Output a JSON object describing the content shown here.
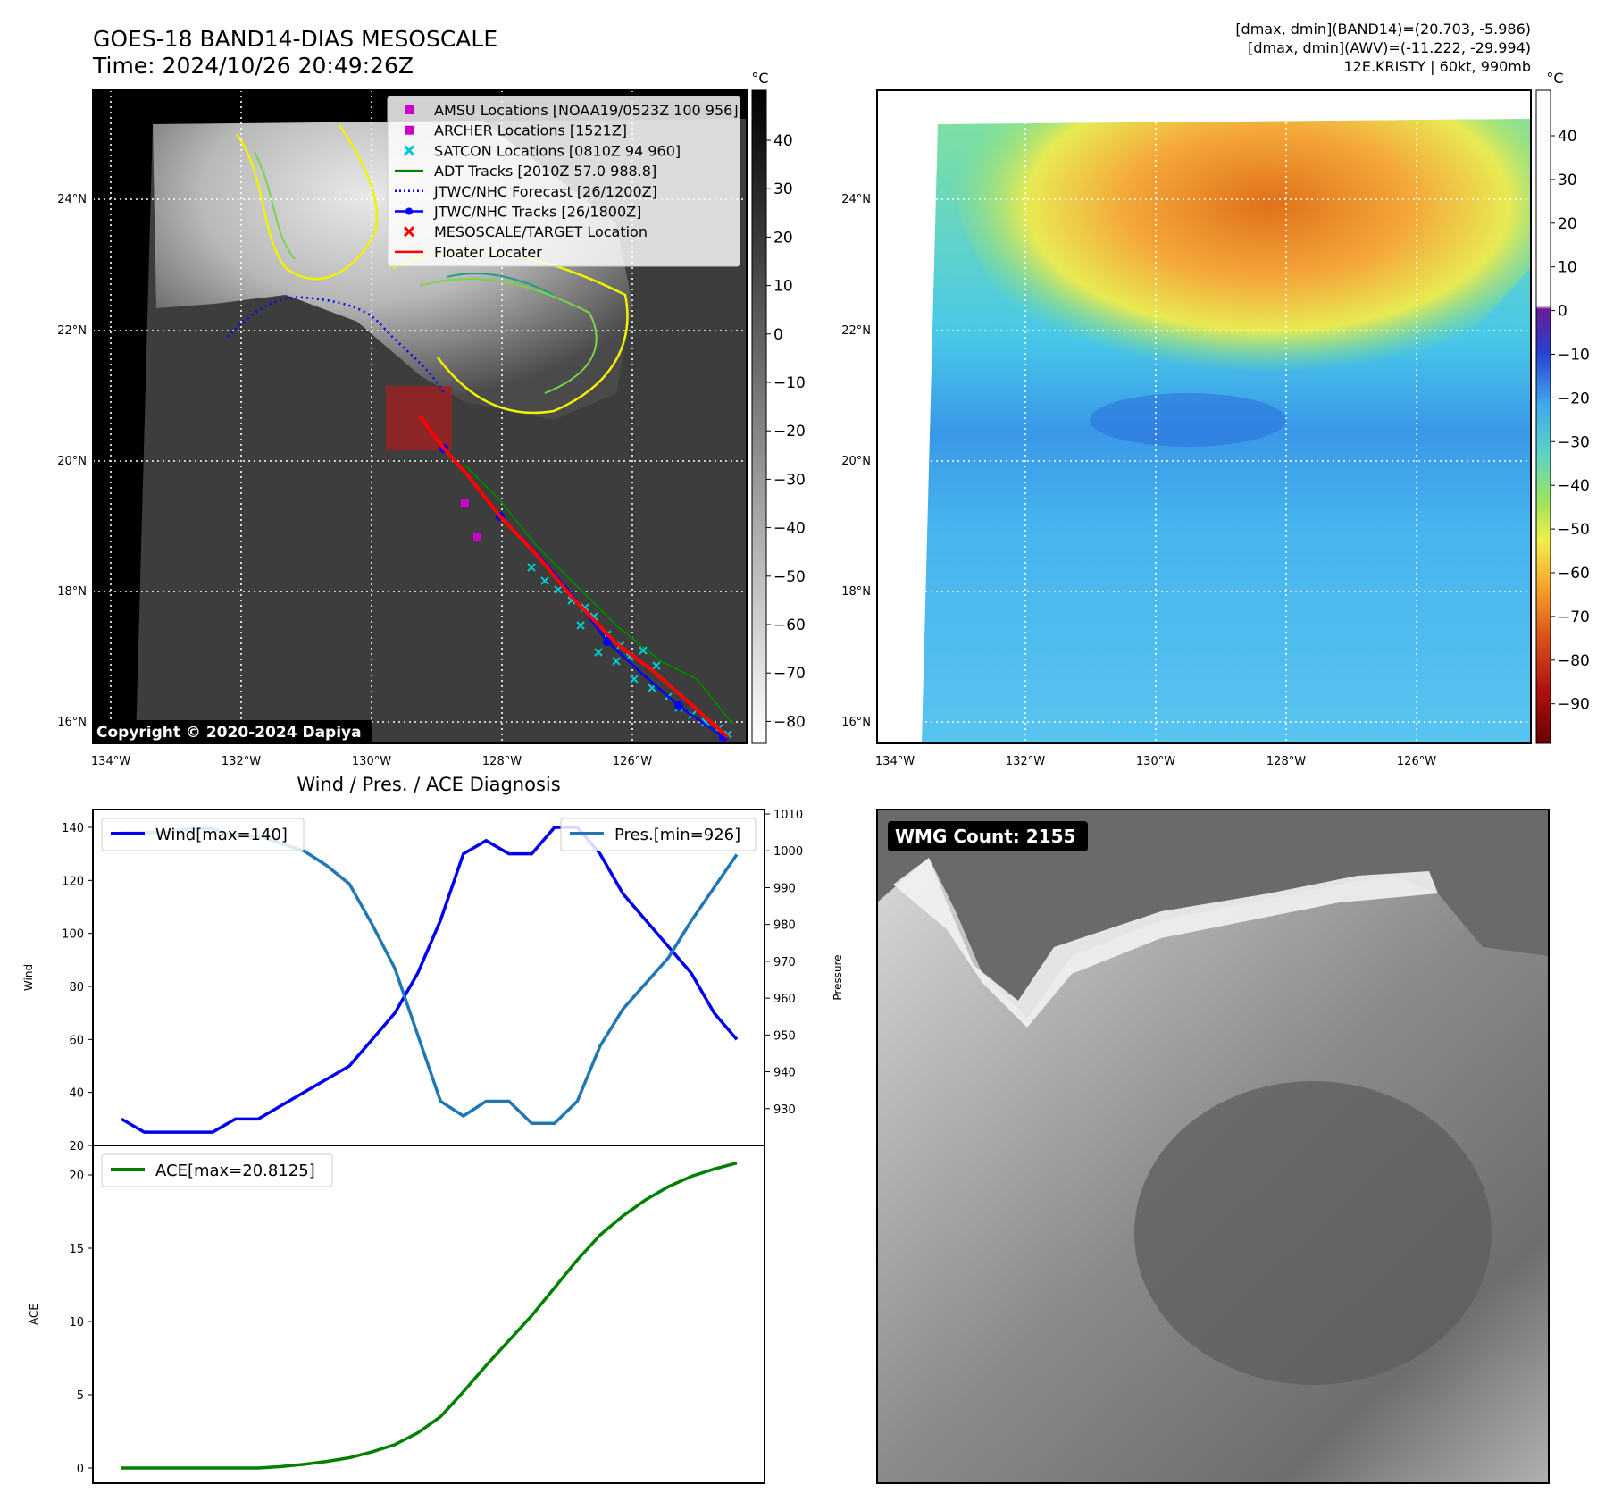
{
  "header": {
    "title": "GOES-18 BAND14-DIAS MESOSCALE",
    "time": "Time: 2024/10/26 20:49:26Z",
    "info_lines": [
      "[dmax, dmin](BAND14)=(20.703, -5.986)",
      "[dmax, dmin](AWV)=(-11.222, -29.994)",
      "12E.KRISTY | 60kt, 990mb"
    ]
  },
  "colors": {
    "wind": "#0000ee",
    "pres": "#1f77b4",
    "ace": "#008000",
    "amsu": "#cc00cc",
    "archer": "#cc00cc",
    "satcon": "#00c8c8",
    "adt": "#008000",
    "jtwc_forecast": "#0000ff",
    "jtwc_tracks": "#0000ff",
    "target": "#ff0000",
    "floater": "#ff0000"
  },
  "map": {
    "lat_labels": [
      "24°N",
      "22°N",
      "20°N",
      "18°N",
      "16°N"
    ],
    "lon_labels": [
      "134°W",
      "132°W",
      "130°W",
      "128°W",
      "126°W"
    ],
    "copyright": "Copyright © 2020-2024 Dapiya",
    "legend": [
      {
        "label": "AMSU Locations [NOAA19/0523Z 100 956]",
        "marker": "square",
        "color_key": "amsu"
      },
      {
        "label": "ARCHER Locations [1521Z]",
        "marker": "square",
        "color_key": "archer"
      },
      {
        "label": "SATCON Locations [0810Z 94 960]",
        "marker": "x",
        "color_key": "satcon"
      },
      {
        "label": "ADT Tracks [2010Z 57.0 988.8]",
        "marker": "line",
        "color_key": "adt"
      },
      {
        "label": "JTWC/NHC Forecast [26/1200Z]",
        "marker": "dotted",
        "color_key": "jtwc_forecast"
      },
      {
        "label": "JTWC/NHC Tracks [26/1800Z]",
        "marker": "line-dot",
        "color_key": "jtwc_tracks"
      },
      {
        "label": "MESOSCALE/TARGET Location",
        "marker": "x",
        "color_key": "target"
      },
      {
        "label": "Floater Locater",
        "marker": "line",
        "color_key": "floater"
      }
    ],
    "colorbar_unit": "°C",
    "gray_colorbar_ticks": [
      "40",
      "30",
      "20",
      "10",
      "0",
      "−10",
      "−20",
      "−30",
      "−40",
      "−50",
      "−60",
      "−70",
      "−80"
    ],
    "color_colorbar_ticks": [
      "40",
      "30",
      "20",
      "10",
      "0",
      "−10",
      "−20",
      "−30",
      "−40",
      "−50",
      "−60",
      "−70",
      "−80",
      "−90"
    ]
  },
  "wmg": {
    "label": "WMG Count: 2155"
  },
  "chart_data": [
    {
      "type": "line",
      "title": "Wind / Pres. / ACE Diagnosis",
      "ylabel": "Wind",
      "y2label": "Pressure",
      "ylim": [
        20,
        140
      ],
      "y2lim": [
        920,
        1010
      ],
      "yticks": [
        20,
        40,
        60,
        80,
        100,
        120,
        140
      ],
      "y2ticks": [
        930,
        940,
        950,
        960,
        970,
        980,
        990,
        1000,
        1010
      ],
      "series": [
        {
          "name": "Wind[max=140]",
          "axis": "left",
          "values": [
            30,
            25,
            25,
            25,
            25,
            30,
            30,
            35,
            40,
            45,
            50,
            60,
            70,
            85,
            105,
            130,
            135,
            130,
            130,
            140,
            140,
            130,
            115,
            105,
            95,
            85,
            70,
            60
          ]
        },
        {
          "name": "Pres.[min=926]",
          "axis": "right",
          "values": [
            1005,
            1005,
            1005,
            1006,
            1006,
            1004,
            1004,
            1002,
            1000,
            996,
            991,
            980,
            968,
            950,
            932,
            928,
            932,
            932,
            926,
            926,
            932,
            947,
            957,
            964,
            971,
            981,
            990,
            999
          ]
        }
      ]
    },
    {
      "type": "line",
      "ylabel": "ACE",
      "ylim": [
        0,
        21
      ],
      "yticks": [
        0,
        5,
        10,
        15,
        20
      ],
      "series": [
        {
          "name": "ACE[max=20.8125]",
          "values": [
            0,
            0,
            0,
            0,
            0,
            0,
            0,
            0.1,
            0.25,
            0.45,
            0.7,
            1.1,
            1.6,
            2.4,
            3.5,
            5.2,
            7.0,
            8.7,
            10.4,
            12.3,
            14.2,
            15.9,
            17.2,
            18.3,
            19.2,
            19.9,
            20.4,
            20.8125
          ]
        }
      ]
    }
  ]
}
